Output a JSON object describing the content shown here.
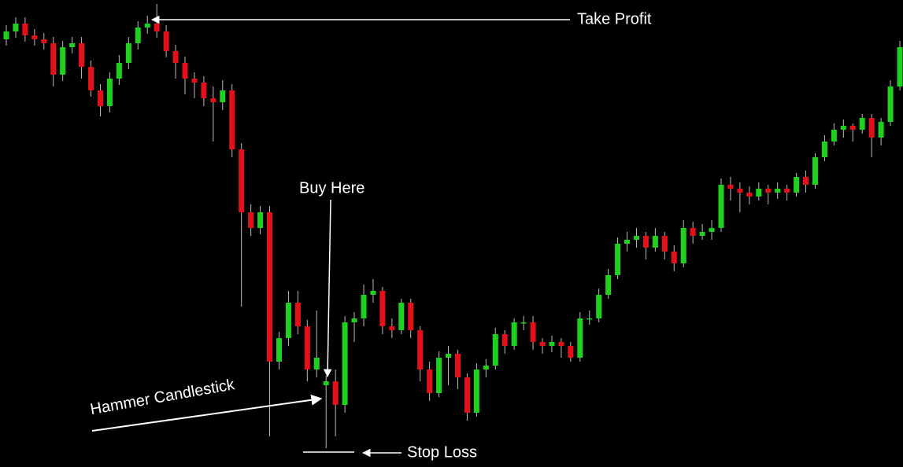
{
  "chart_data": {
    "type": "candlestick",
    "up_color": "#1fd11f",
    "down_color": "#e3101b",
    "ylim": [
      0,
      594
    ],
    "open": [
      544,
      554,
      564,
      549,
      544,
      539,
      499,
      534,
      539,
      509,
      479,
      459,
      494,
      514,
      539,
      559,
      564,
      554,
      529,
      514,
      494,
      489,
      469,
      464,
      479,
      404,
      324,
      304,
      324,
      134,
      164,
      209,
      179,
      124,
      104,
      109,
      79,
      184,
      189,
      219,
      224,
      179,
      174,
      209,
      174,
      124,
      94,
      139,
      144,
      114,
      69,
      124,
      129,
      169,
      154,
      184,
      184,
      159,
      154,
      159,
      154,
      139,
      189,
      189,
      219,
      244,
      284,
      289,
      294,
      279,
      294,
      274,
      259,
      304,
      294,
      299,
      304,
      359,
      354,
      349,
      344,
      354,
      349,
      354,
      349,
      369,
      359,
      394,
      414,
      429,
      434,
      429,
      444,
      419,
      439,
      484
    ],
    "high": [
      562,
      572,
      572,
      557,
      552,
      547,
      542,
      547,
      547,
      517,
      487,
      502,
      524,
      547,
      567,
      574,
      589,
      562,
      537,
      522,
      502,
      497,
      484,
      492,
      487,
      412,
      334,
      332,
      332,
      172,
      224,
      224,
      187,
      199,
      116,
      124,
      192,
      197,
      232,
      239,
      229,
      189,
      214,
      214,
      179,
      134,
      147,
      154,
      149,
      119,
      132,
      137,
      177,
      174,
      189,
      192,
      192,
      164,
      167,
      164,
      159,
      197,
      199,
      227,
      252,
      292,
      299,
      304,
      299,
      304,
      299,
      282,
      314,
      312,
      309,
      314,
      367,
      369,
      362,
      357,
      362,
      359,
      362,
      359,
      374,
      377,
      399,
      422,
      437,
      442,
      437,
      449,
      449,
      444,
      492,
      542
    ],
    "low": [
      536,
      546,
      541,
      536,
      531,
      484,
      491,
      526,
      494,
      471,
      446,
      451,
      486,
      506,
      531,
      551,
      546,
      521,
      494,
      474,
      469,
      459,
      414,
      454,
      394,
      204,
      294,
      296,
      39,
      124,
      154,
      169,
      109,
      114,
      24,
      39,
      69,
      159,
      179,
      209,
      169,
      164,
      169,
      164,
      109,
      84,
      89,
      104,
      99,
      59,
      64,
      114,
      124,
      144,
      149,
      174,
      149,
      144,
      146,
      139,
      134,
      134,
      181,
      184,
      214,
      239,
      274,
      279,
      264,
      274,
      264,
      249,
      254,
      284,
      289,
      289,
      299,
      339,
      324,
      334,
      339,
      334,
      341,
      339,
      344,
      349,
      354,
      389,
      409,
      419,
      414,
      424,
      394,
      409,
      434,
      479
    ],
    "close": [
      554,
      564,
      549,
      544,
      539,
      499,
      534,
      539,
      509,
      479,
      459,
      494,
      514,
      539,
      559,
      564,
      554,
      529,
      514,
      494,
      489,
      469,
      464,
      479,
      404,
      324,
      304,
      324,
      134,
      164,
      209,
      179,
      124,
      139,
      109,
      79,
      184,
      189,
      219,
      224,
      179,
      174,
      209,
      174,
      124,
      94,
      139,
      144,
      114,
      69,
      124,
      129,
      169,
      154,
      184,
      184,
      159,
      154,
      159,
      154,
      139,
      189,
      189,
      219,
      244,
      284,
      289,
      294,
      279,
      294,
      274,
      259,
      304,
      294,
      299,
      304,
      359,
      354,
      349,
      344,
      354,
      349,
      354,
      349,
      369,
      359,
      394,
      414,
      429,
      434,
      429,
      444,
      419,
      439,
      484,
      534
    ],
    "annotations": {
      "take_profit": "Take Profit",
      "buy_here": "Buy Here",
      "hammer": "Hammer  Candlestick",
      "stop_loss": "Stop Loss"
    }
  }
}
